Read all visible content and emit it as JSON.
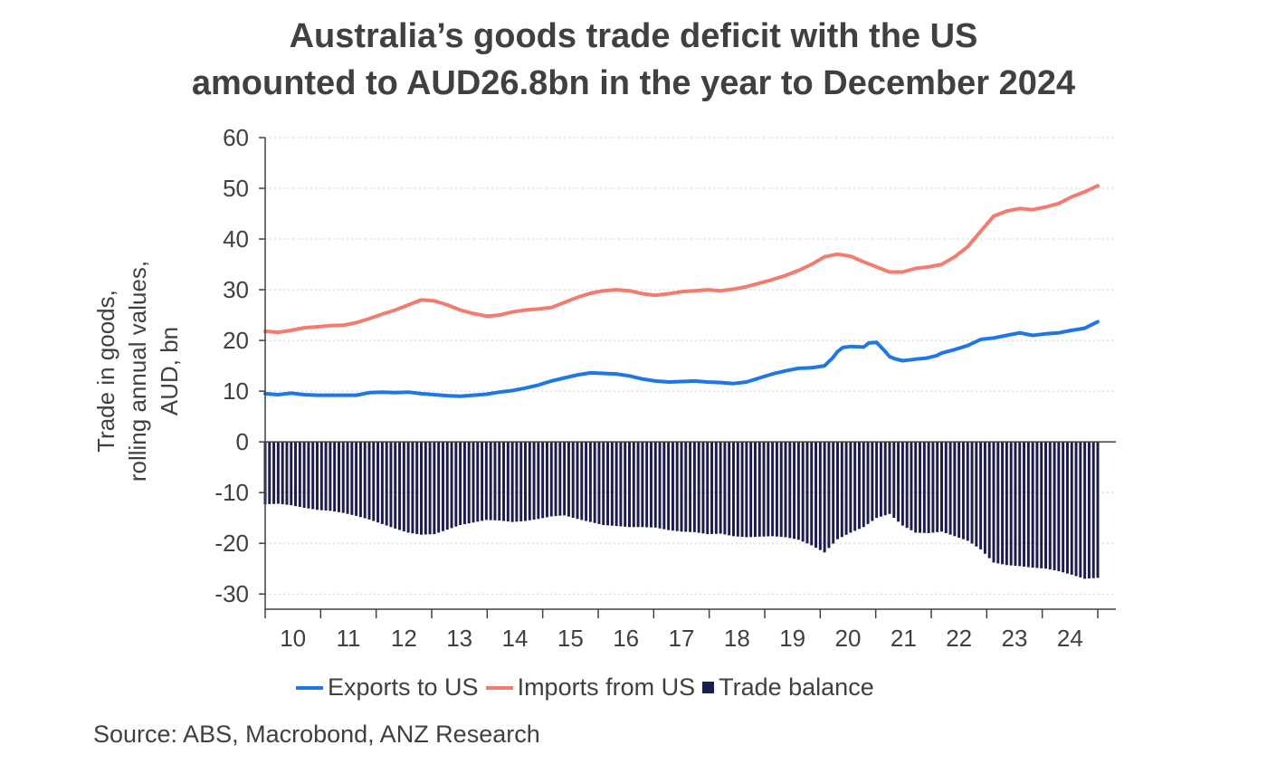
{
  "title_line1": "Australia’s goods trade deficit with the US",
  "title_line2": "amounted to AUD26.8bn in the year to December 2024",
  "source": "Source: ABS, Macrobond, ANZ Research",
  "colors": {
    "exports": "#1f77e4",
    "imports": "#f47c6e",
    "balance": "#1c1c4e",
    "text": "#404040"
  },
  "chart_data": {
    "type": "line",
    "title": "Australia’s goods trade deficit with the US amounted to AUD26.8bn in the year to December 2024",
    "ylabel_lines": [
      "Trade in goods,",
      "rolling annual values,",
      "AUD, bn"
    ],
    "ylim": [
      -33,
      60
    ],
    "yticks": [
      60,
      50,
      40,
      30,
      20,
      10,
      0,
      -10,
      -20,
      -30
    ],
    "xlim": [
      2009.5,
      2024.75
    ],
    "xtick_labels": [
      "10",
      "11",
      "12",
      "13",
      "14",
      "15",
      "16",
      "17",
      "18",
      "19",
      "20",
      "21",
      "22",
      "23",
      "24"
    ],
    "grid": true,
    "legend_position": "bottom",
    "series": [
      {
        "name": "Exports to US",
        "kind": "line",
        "points": [
          [
            2009.5,
            9.5
          ],
          [
            2009.75,
            9.3
          ],
          [
            2010.0,
            9.6
          ],
          [
            2010.25,
            9.3
          ],
          [
            2010.5,
            9.2
          ],
          [
            2010.75,
            9.2
          ],
          [
            2011.0,
            9.2
          ],
          [
            2011.25,
            9.2
          ],
          [
            2011.5,
            9.7
          ],
          [
            2011.75,
            9.8
          ],
          [
            2012.0,
            9.7
          ],
          [
            2012.25,
            9.8
          ],
          [
            2012.5,
            9.5
          ],
          [
            2012.75,
            9.3
          ],
          [
            2013.0,
            9.1
          ],
          [
            2013.25,
            9.0
          ],
          [
            2013.5,
            9.2
          ],
          [
            2013.75,
            9.4
          ],
          [
            2014.0,
            9.8
          ],
          [
            2014.25,
            10.1
          ],
          [
            2014.5,
            10.6
          ],
          [
            2014.75,
            11.2
          ],
          [
            2015.0,
            12.0
          ],
          [
            2015.25,
            12.6
          ],
          [
            2015.5,
            13.2
          ],
          [
            2015.75,
            13.6
          ],
          [
            2016.0,
            13.5
          ],
          [
            2016.25,
            13.4
          ],
          [
            2016.5,
            13.0
          ],
          [
            2016.75,
            12.4
          ],
          [
            2017.0,
            12.0
          ],
          [
            2017.25,
            11.8
          ],
          [
            2017.5,
            11.9
          ],
          [
            2017.75,
            12.0
          ],
          [
            2018.0,
            11.8
          ],
          [
            2018.25,
            11.7
          ],
          [
            2018.5,
            11.5
          ],
          [
            2018.75,
            11.8
          ],
          [
            2019.0,
            12.6
          ],
          [
            2019.25,
            13.4
          ],
          [
            2019.5,
            14.0
          ],
          [
            2019.75,
            14.5
          ],
          [
            2020.0,
            14.6
          ],
          [
            2020.25,
            15.0
          ],
          [
            2020.4,
            16.5
          ],
          [
            2020.5,
            17.8
          ],
          [
            2020.6,
            18.6
          ],
          [
            2020.75,
            18.8
          ],
          [
            2021.0,
            18.7
          ],
          [
            2021.1,
            19.5
          ],
          [
            2021.25,
            19.6
          ],
          [
            2021.4,
            18.0
          ],
          [
            2021.5,
            16.8
          ],
          [
            2021.6,
            16.4
          ],
          [
            2021.75,
            16.0
          ],
          [
            2022.0,
            16.3
          ],
          [
            2022.2,
            16.5
          ],
          [
            2022.4,
            17.0
          ],
          [
            2022.5,
            17.5
          ],
          [
            2022.75,
            18.2
          ],
          [
            2023.0,
            19.0
          ],
          [
            2023.25,
            20.2
          ],
          [
            2023.5,
            20.5
          ],
          [
            2023.75,
            21.0
          ],
          [
            2024.0,
            21.5
          ],
          [
            2024.25,
            21.0
          ],
          [
            2024.5,
            21.3
          ],
          [
            2024.75,
            21.5
          ],
          [
            2025.0,
            22.0
          ],
          [
            2025.25,
            22.4
          ],
          [
            2025.5,
            23.7
          ]
        ],
        "color": "#1f77e4"
      },
      {
        "name": "Imports from US",
        "kind": "line",
        "points": [
          [
            2009.5,
            21.8
          ],
          [
            2009.75,
            21.6
          ],
          [
            2010.0,
            22.0
          ],
          [
            2010.25,
            22.5
          ],
          [
            2010.5,
            22.7
          ],
          [
            2010.75,
            22.9
          ],
          [
            2011.0,
            23.0
          ],
          [
            2011.25,
            23.5
          ],
          [
            2011.5,
            24.3
          ],
          [
            2011.75,
            25.2
          ],
          [
            2012.0,
            26.0
          ],
          [
            2012.25,
            27.0
          ],
          [
            2012.5,
            28.0
          ],
          [
            2012.75,
            27.8
          ],
          [
            2013.0,
            27.0
          ],
          [
            2013.25,
            26.0
          ],
          [
            2013.5,
            25.3
          ],
          [
            2013.75,
            24.8
          ],
          [
            2014.0,
            25.0
          ],
          [
            2014.25,
            25.6
          ],
          [
            2014.5,
            26.0
          ],
          [
            2014.75,
            26.2
          ],
          [
            2015.0,
            26.5
          ],
          [
            2015.25,
            27.5
          ],
          [
            2015.5,
            28.5
          ],
          [
            2015.75,
            29.3
          ],
          [
            2016.0,
            29.8
          ],
          [
            2016.25,
            30.0
          ],
          [
            2016.5,
            29.8
          ],
          [
            2016.75,
            29.2
          ],
          [
            2017.0,
            28.9
          ],
          [
            2017.25,
            29.2
          ],
          [
            2017.5,
            29.6
          ],
          [
            2017.75,
            29.8
          ],
          [
            2018.0,
            30.0
          ],
          [
            2018.25,
            29.8
          ],
          [
            2018.5,
            30.1
          ],
          [
            2018.75,
            30.6
          ],
          [
            2019.0,
            31.3
          ],
          [
            2019.25,
            32.0
          ],
          [
            2019.5,
            32.8
          ],
          [
            2019.75,
            33.8
          ],
          [
            2020.0,
            35.0
          ],
          [
            2020.25,
            36.5
          ],
          [
            2020.5,
            37.0
          ],
          [
            2020.75,
            36.6
          ],
          [
            2021.0,
            35.5
          ],
          [
            2021.25,
            34.5
          ],
          [
            2021.5,
            33.5
          ],
          [
            2021.75,
            33.5
          ],
          [
            2022.0,
            34.2
          ],
          [
            2022.25,
            34.5
          ],
          [
            2022.5,
            35.0
          ],
          [
            2022.75,
            36.5
          ],
          [
            2023.0,
            38.5
          ],
          [
            2023.25,
            41.5
          ],
          [
            2023.5,
            44.5
          ],
          [
            2023.75,
            45.5
          ],
          [
            2024.0,
            46.0
          ],
          [
            2024.25,
            45.8
          ],
          [
            2024.5,
            46.3
          ],
          [
            2024.75,
            47.0
          ],
          [
            2025.0,
            48.3
          ],
          [
            2025.25,
            49.3
          ],
          [
            2025.5,
            50.5
          ]
        ],
        "color": "#f47c6e"
      },
      {
        "name": "Trade balance",
        "kind": "bar",
        "points": [
          [
            2009.5,
            -12.3
          ],
          [
            2009.75,
            -12.2
          ],
          [
            2010.0,
            -12.5
          ],
          [
            2010.25,
            -13.0
          ],
          [
            2010.5,
            -13.4
          ],
          [
            2010.75,
            -13.6
          ],
          [
            2011.0,
            -14.0
          ],
          [
            2011.25,
            -14.6
          ],
          [
            2011.5,
            -15.3
          ],
          [
            2011.75,
            -16.2
          ],
          [
            2012.0,
            -17.1
          ],
          [
            2012.25,
            -17.9
          ],
          [
            2012.5,
            -18.3
          ],
          [
            2012.75,
            -18.2
          ],
          [
            2013.0,
            -17.3
          ],
          [
            2013.25,
            -16.4
          ],
          [
            2013.5,
            -15.9
          ],
          [
            2013.75,
            -15.4
          ],
          [
            2014.0,
            -15.5
          ],
          [
            2014.25,
            -15.8
          ],
          [
            2014.5,
            -15.6
          ],
          [
            2014.75,
            -15.2
          ],
          [
            2015.0,
            -14.7
          ],
          [
            2015.25,
            -14.5
          ],
          [
            2015.5,
            -15.2
          ],
          [
            2015.75,
            -15.8
          ],
          [
            2016.0,
            -16.4
          ],
          [
            2016.25,
            -16.6
          ],
          [
            2016.5,
            -16.8
          ],
          [
            2016.75,
            -16.8
          ],
          [
            2017.0,
            -16.9
          ],
          [
            2017.25,
            -17.4
          ],
          [
            2017.5,
            -17.7
          ],
          [
            2017.75,
            -17.8
          ],
          [
            2018.0,
            -18.2
          ],
          [
            2018.25,
            -18.1
          ],
          [
            2018.5,
            -18.6
          ],
          [
            2018.75,
            -18.8
          ],
          [
            2019.0,
            -18.7
          ],
          [
            2019.25,
            -18.6
          ],
          [
            2019.5,
            -18.8
          ],
          [
            2019.75,
            -19.3
          ],
          [
            2020.0,
            -20.4
          ],
          [
            2020.25,
            -21.8
          ],
          [
            2020.5,
            -19.2
          ],
          [
            2020.75,
            -17.9
          ],
          [
            2021.0,
            -16.8
          ],
          [
            2021.25,
            -15.0
          ],
          [
            2021.5,
            -14.2
          ],
          [
            2021.75,
            -16.5
          ],
          [
            2022.0,
            -17.9
          ],
          [
            2022.25,
            -18.0
          ],
          [
            2022.5,
            -17.7
          ],
          [
            2022.75,
            -18.6
          ],
          [
            2023.0,
            -19.5
          ],
          [
            2023.25,
            -21.2
          ],
          [
            2023.5,
            -23.8
          ],
          [
            2023.75,
            -24.3
          ],
          [
            2024.0,
            -24.5
          ],
          [
            2024.25,
            -24.8
          ],
          [
            2024.5,
            -25.0
          ],
          [
            2024.75,
            -25.5
          ],
          [
            2025.0,
            -26.2
          ],
          [
            2025.25,
            -27.0
          ],
          [
            2025.5,
            -26.8
          ]
        ],
        "color": "#1c1c4e"
      }
    ]
  }
}
